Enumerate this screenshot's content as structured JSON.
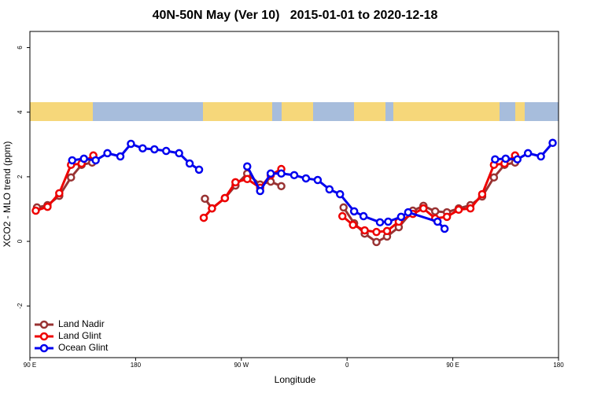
{
  "chart_data": {
    "type": "line",
    "title": "40N-50N May (Ver 10)   2015-01-01 to 2020-12-18",
    "x_label": "Longitude",
    "y_label": "XCO2 - MLO trend (ppm)",
    "xlim": [
      90,
      540
    ],
    "xticks": [
      {
        "value": 90,
        "label": "90 E"
      },
      {
        "value": 180,
        "label": "180"
      },
      {
        "value": 270,
        "label": "90 W"
      },
      {
        "value": 360,
        "label": "0"
      },
      {
        "value": 450,
        "label": "90 E"
      },
      {
        "value": 540,
        "label": "180"
      }
    ],
    "ylim": [
      -3.6,
      6.5
    ],
    "yticks": [
      -2,
      0,
      2,
      4,
      6
    ],
    "legend": "bottom-left",
    "series": [
      {
        "name": "Land Nadir",
        "color": "#993333",
        "x": [
          96,
          105,
          115,
          125,
          134,
          143,
          null,
          239,
          245,
          256,
          265,
          275,
          286,
          295,
          304,
          null,
          357,
          366,
          375,
          385,
          394,
          404,
          416,
          425,
          435,
          445,
          455,
          465,
          475,
          485,
          494,
          503
        ],
        "values": [
          1.05,
          1.12,
          1.41,
          1.98,
          2.37,
          2.44,
          null,
          1.32,
          1.02,
          1.34,
          1.73,
          2.1,
          1.76,
          1.85,
          1.71,
          null,
          1.05,
          0.56,
          0.24,
          -0.02,
          0.15,
          0.44,
          0.95,
          1.1,
          0.93,
          0.9,
          1.02,
          1.12,
          1.39,
          1.98,
          2.37,
          2.44
        ]
      },
      {
        "name": "Land Glint",
        "color": "#ee0000",
        "x": [
          95,
          105,
          115,
          125,
          134,
          144,
          null,
          238,
          245,
          256,
          265,
          275,
          286,
          295,
          304,
          null,
          356,
          365,
          375,
          385,
          394,
          404,
          416,
          425,
          435,
          445,
          455,
          465,
          475,
          485,
          494,
          503
        ],
        "values": [
          0.95,
          1.07,
          1.49,
          2.37,
          2.41,
          2.66,
          null,
          0.73,
          1.02,
          1.34,
          1.83,
          1.93,
          1.66,
          2.05,
          2.24,
          null,
          0.78,
          0.51,
          0.34,
          0.29,
          0.32,
          0.61,
          0.85,
          1.02,
          0.71,
          0.76,
          0.98,
          1.02,
          1.46,
          2.37,
          2.41,
          2.66
        ]
      },
      {
        "name": "Ocean Glint",
        "color": "#0000ee",
        "x": [
          126,
          136,
          146,
          156,
          167,
          176,
          186,
          196,
          206,
          217,
          226,
          234,
          null,
          275,
          286,
          295,
          304,
          315,
          325,
          335,
          345,
          354,
          366,
          374,
          388,
          395,
          406,
          412,
          437,
          443,
          null,
          486,
          495,
          505,
          514,
          525,
          535
        ],
        "values": [
          2.51,
          2.56,
          2.51,
          2.73,
          2.63,
          3.02,
          2.88,
          2.85,
          2.8,
          2.73,
          2.41,
          2.22,
          null,
          2.32,
          1.56,
          2.1,
          2.1,
          2.05,
          1.95,
          1.9,
          1.61,
          1.46,
          0.93,
          0.78,
          0.59,
          0.61,
          0.76,
          0.9,
          0.61,
          0.39,
          null,
          2.54,
          2.56,
          2.54,
          2.73,
          2.63,
          3.05
        ]
      }
    ]
  }
}
